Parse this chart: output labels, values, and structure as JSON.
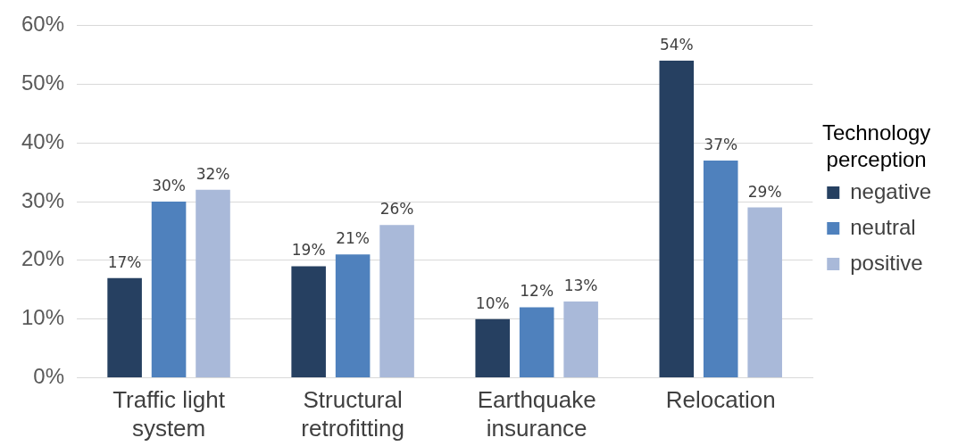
{
  "chart_data": {
    "type": "bar",
    "categories": [
      "Traffic light system",
      "Structural retrofitting",
      "Earthquake insurance",
      "Relocation"
    ],
    "legend_title": "Technology perception",
    "legend": "right",
    "series": [
      {
        "name": "negative",
        "color": "#264061",
        "values": [
          17,
          19,
          10,
          54
        ],
        "value_labels": [
          "17%",
          "19%",
          "10%",
          "54%"
        ]
      },
      {
        "name": "neutral",
        "color": "#4f81bd",
        "values": [
          30,
          21,
          12,
          37
        ],
        "value_labels": [
          "30%",
          "21%",
          "12%",
          "37%"
        ]
      },
      {
        "name": "positive",
        "color": "#a9b9d9",
        "values": [
          32,
          26,
          13,
          29
        ],
        "value_labels": [
          "32%",
          "26%",
          "13%",
          "29%"
        ]
      }
    ],
    "ylim": [
      0,
      60
    ],
    "yticks": [
      {
        "value": 0,
        "label": "0%"
      },
      {
        "value": 10,
        "label": "10%"
      },
      {
        "value": 20,
        "label": "20%"
      },
      {
        "value": 30,
        "label": "30%"
      },
      {
        "value": 40,
        "label": "40%"
      },
      {
        "value": 50,
        "label": "50%"
      },
      {
        "value": 60,
        "label": "60%"
      }
    ],
    "grid": "y"
  }
}
